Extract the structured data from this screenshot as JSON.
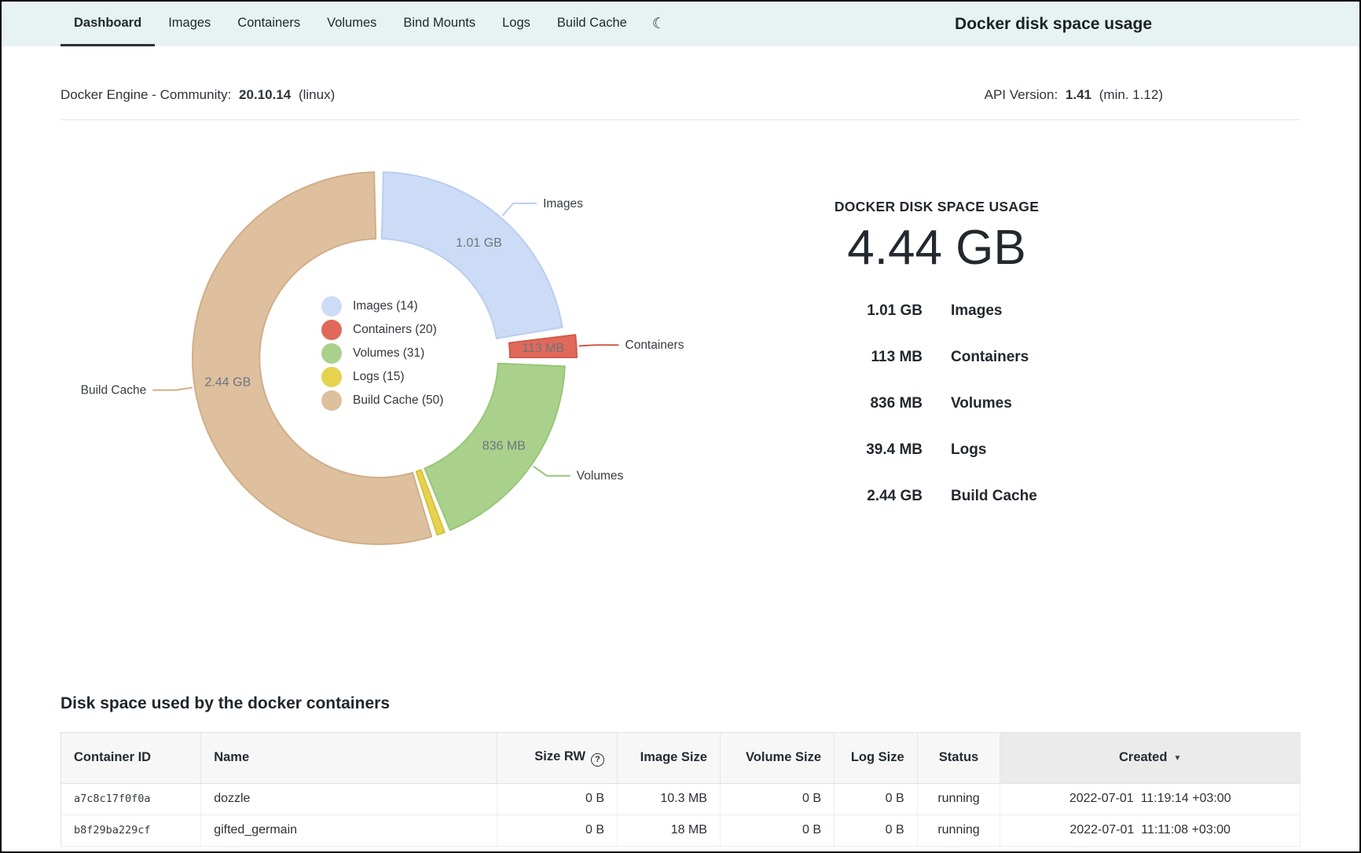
{
  "nav": {
    "title": "Docker disk space usage",
    "tabs": [
      {
        "label": "Dashboard",
        "active": true
      },
      {
        "label": "Images",
        "active": false
      },
      {
        "label": "Containers",
        "active": false
      },
      {
        "label": "Volumes",
        "active": false
      },
      {
        "label": "Bind Mounts",
        "active": false
      },
      {
        "label": "Logs",
        "active": false
      },
      {
        "label": "Build Cache",
        "active": false
      }
    ]
  },
  "icons": {
    "dark_mode": "☾",
    "sort_desc": "▼",
    "help": "?"
  },
  "engine": {
    "name": "Docker Engine - Community:",
    "version": "20.10.14",
    "platform": "(linux)",
    "api_label": "API Version:",
    "api_version": "1.41",
    "api_min": "(min. 1.12)"
  },
  "chart_data": {
    "type": "pie",
    "style": "donut",
    "title": "Docker disk space usage by category",
    "unit": "MB",
    "total_label": "4.44 GB",
    "legend_position": "center",
    "segments": [
      {
        "label": "Images",
        "count": 14,
        "value_mb": 1010,
        "size_label": "1.01 GB",
        "color": "#cddcf6",
        "border": "#b9cdf0",
        "callout": true,
        "show_value": true,
        "explode": 0
      },
      {
        "label": "Containers",
        "count": 20,
        "value_mb": 113,
        "size_label": "113 MB",
        "color": "#e0695a",
        "border": "#d05a4b",
        "callout": true,
        "show_value": true,
        "explode": 15
      },
      {
        "label": "Volumes",
        "count": 31,
        "value_mb": 836,
        "size_label": "836 MB",
        "color": "#a9d18c",
        "border": "#97c678",
        "callout": true,
        "show_value": true,
        "explode": 0
      },
      {
        "label": "Logs",
        "count": 15,
        "value_mb": 39.4,
        "size_label": "39.4 MB",
        "color": "#e6d24f",
        "border": "#d8c43e",
        "callout": false,
        "show_value": false,
        "explode": 0
      },
      {
        "label": "Build Cache",
        "count": 50,
        "value_mb": 2440,
        "size_label": "2.44 GB",
        "color": "#debf9e",
        "border": "#d0ae88",
        "callout": true,
        "show_value": true,
        "explode": 0
      }
    ]
  },
  "summary": {
    "title": "DOCKER DISK SPACE USAGE",
    "total": "4.44 GB",
    "rows": [
      {
        "size": "1.01 GB",
        "label": "Images"
      },
      {
        "size": "113 MB",
        "label": "Containers"
      },
      {
        "size": "836 MB",
        "label": "Volumes"
      },
      {
        "size": "39.4 MB",
        "label": "Logs"
      },
      {
        "size": "2.44 GB",
        "label": "Build Cache"
      }
    ]
  },
  "table": {
    "heading": "Disk space used by the docker containers",
    "columns": [
      {
        "label": "Container ID",
        "align": "left",
        "help": false,
        "sorted": null
      },
      {
        "label": "Name",
        "align": "left",
        "help": false,
        "sorted": null
      },
      {
        "label": "Size RW",
        "align": "right",
        "help": true,
        "sorted": null
      },
      {
        "label": "Image Size",
        "align": "right",
        "help": false,
        "sorted": null
      },
      {
        "label": "Volume Size",
        "align": "right",
        "help": false,
        "sorted": null
      },
      {
        "label": "Log Size",
        "align": "right",
        "help": false,
        "sorted": null
      },
      {
        "label": "Status",
        "align": "center",
        "help": false,
        "sorted": null
      },
      {
        "label": "Created",
        "align": "center",
        "help": false,
        "sorted": "desc"
      }
    ],
    "rows": [
      {
        "container_id": "a7c8c17f0f0a",
        "name": "dozzle",
        "size_rw": "0 B",
        "image_size": "10.3 MB",
        "volume_size": "0 B",
        "log_size": "0 B",
        "status": "running",
        "created": "2022-07-01  11:19:14 +03:00"
      },
      {
        "container_id": "b8f29ba229cf",
        "name": "gifted_germain",
        "size_rw": "0 B",
        "image_size": "18 MB",
        "volume_size": "0 B",
        "log_size": "0 B",
        "status": "running",
        "created": "2022-07-01  11:11:08 +03:00"
      }
    ]
  }
}
